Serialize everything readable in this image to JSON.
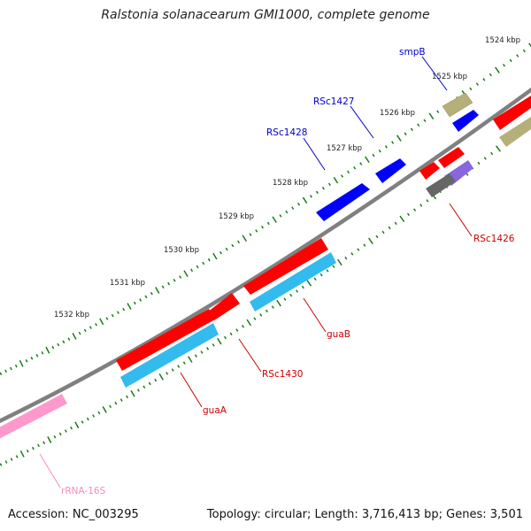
{
  "title": "Ralstonia solanacearum GMI1000, complete genome",
  "footer": {
    "accession": "Accession: NC_003295",
    "summary": "Topology: circular; Length: 3,716,413 bp; Genes: 3,501"
  },
  "scale_ticks": [
    "1524 kbp",
    "1525 kbp",
    "1526 kbp",
    "1527 kbp",
    "1528 kbp",
    "1529 kbp",
    "1530 kbp",
    "1531 kbp",
    "1532 kbp"
  ],
  "gene_labels": [
    {
      "text": "smpB",
      "color": "#0000cc"
    },
    {
      "text": "RSc1427",
      "color": "#0000cc"
    },
    {
      "text": "RSc1428",
      "color": "#0000cc"
    },
    {
      "text": "RSc1426",
      "color": "#cc0000"
    },
    {
      "text": "guaB",
      "color": "#cc0000"
    },
    {
      "text": "RSc1430",
      "color": "#cc0000"
    },
    {
      "text": "guaA",
      "color": "#cc0000"
    },
    {
      "text": "rRNA-16S",
      "color": "#ff88bb"
    }
  ],
  "colors": {
    "backbone": "#808080",
    "tick": "#1a7a1a",
    "cds_red": "#ff0000",
    "cds_blue": "#0000ff",
    "gene_cyan": "#33bbee",
    "olive": "#b5b07a",
    "purple": "#8866dd",
    "gray": "#666666",
    "rrna_pink": "#ff99cc"
  }
}
